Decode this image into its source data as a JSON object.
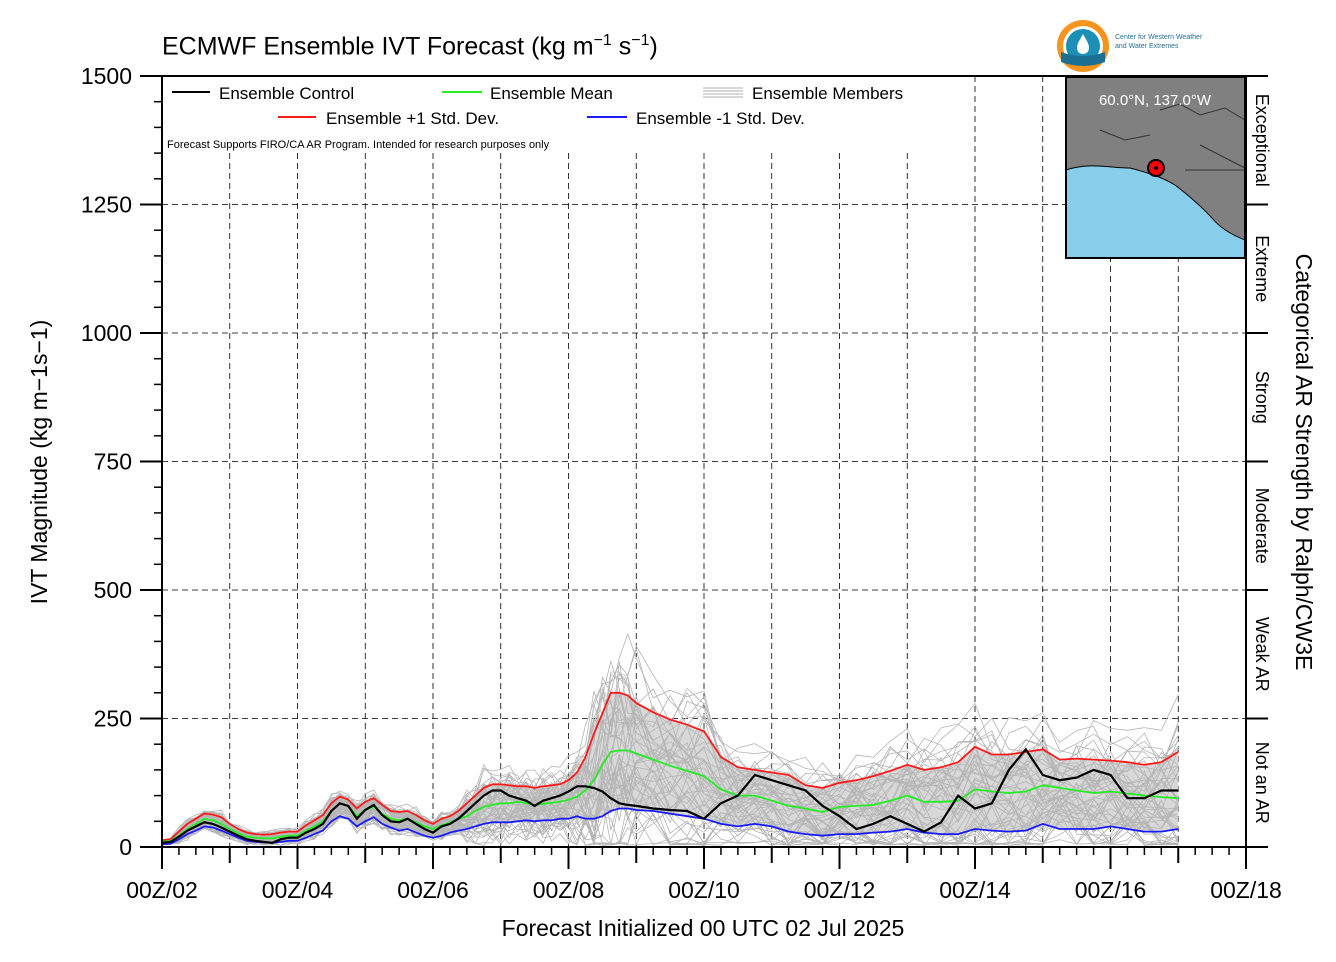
{
  "title": {
    "main": "ECMWF Ensemble IVT Forecast (kg m",
    "sup1": "−1",
    "mid": " s",
    "sup2": "−1",
    "end": ")"
  },
  "logo": {
    "line1": "Center for Western Weather",
    "line2": "and Water Extremes"
  },
  "chart_data": {
    "type": "line",
    "title": "ECMWF Ensemble IVT Forecast (kg m−1 s−1)",
    "xlabel": "Forecast Initialized 00 UTC 02 Jul 2025",
    "ylabel": "IVT Magnitude (kg m−1s−1)",
    "right_label": "Categorical AR Strength by Ralph/CW3E",
    "note": "Forecast Supports FIRO/CA AR Program. Intended for research purposes only",
    "inset_label": "60.0°N, 137.0°W",
    "ylim": [
      0,
      1500
    ],
    "xlim_days": [
      2,
      18
    ],
    "y_ticks": [
      0,
      250,
      500,
      750,
      1000,
      1250,
      1500
    ],
    "x_ticks": [
      "00Z/02",
      "00Z/04",
      "00Z/06",
      "00Z/08",
      "00Z/10",
      "00Z/12",
      "00Z/14",
      "00Z/16",
      "00Z/18"
    ],
    "grid": true,
    "legend_position": "top-left",
    "categories_right": [
      {
        "label": "Not an AR",
        "from": 0,
        "to": 250
      },
      {
        "label": "Weak AR",
        "from": 250,
        "to": 500
      },
      {
        "label": "Moderate",
        "from": 500,
        "to": 750
      },
      {
        "label": "Strong",
        "from": 750,
        "to": 1000
      },
      {
        "label": "Extreme",
        "from": 1000,
        "to": 1250
      },
      {
        "label": "Exceptional",
        "from": 1250,
        "to": 1500
      }
    ],
    "x_days": [
      2,
      2.125,
      2.25,
      2.375,
      2.5,
      2.625,
      2.75,
      2.875,
      3,
      3.125,
      3.25,
      3.375,
      3.5,
      3.625,
      3.75,
      3.875,
      4,
      4.125,
      4.25,
      4.375,
      4.5,
      4.625,
      4.75,
      4.875,
      5,
      5.125,
      5.25,
      5.375,
      5.5,
      5.625,
      5.75,
      5.875,
      6,
      6.125,
      6.25,
      6.375,
      6.5,
      6.625,
      6.75,
      6.875,
      7,
      7.125,
      7.25,
      7.375,
      7.5,
      7.625,
      7.75,
      7.875,
      8,
      8.125,
      8.25,
      8.375,
      8.5,
      8.625,
      8.75,
      8.875,
      9,
      9.25,
      9.5,
      9.75,
      10,
      10.25,
      10.5,
      10.75,
      11,
      11.25,
      11.5,
      11.75,
      12,
      12.25,
      12.5,
      12.75,
      13,
      13.25,
      13.5,
      13.75,
      14,
      14.25,
      14.5,
      14.75,
      15,
      15.25,
      15.5,
      15.75,
      16,
      16.25,
      16.5,
      16.75,
      17
    ],
    "series": [
      {
        "name": "Ensemble Control",
        "color": "#000000",
        "values": [
          8,
          10,
          20,
          32,
          40,
          48,
          45,
          38,
          30,
          22,
          15,
          12,
          10,
          8,
          15,
          18,
          18,
          28,
          35,
          45,
          70,
          85,
          80,
          55,
          72,
          82,
          62,
          50,
          48,
          55,
          45,
          35,
          28,
          40,
          45,
          55,
          70,
          85,
          100,
          110,
          110,
          100,
          95,
          90,
          80,
          90,
          95,
          100,
          108,
          118,
          118,
          115,
          108,
          95,
          85,
          82,
          80,
          75,
          72,
          70,
          55,
          85,
          100,
          140,
          130,
          120,
          110,
          80,
          60,
          35,
          45,
          60,
          45,
          30,
          48,
          100,
          75,
          85,
          150,
          190,
          140,
          130,
          135,
          150,
          140,
          95,
          95,
          110,
          110
        ]
      },
      {
        "name": "Ensemble Mean",
        "color": "#22ee22",
        "values": [
          10,
          12,
          22,
          35,
          45,
          55,
          52,
          45,
          35,
          27,
          20,
          18,
          17,
          17,
          20,
          22,
          22,
          32,
          40,
          50,
          70,
          85,
          80,
          60,
          72,
          78,
          65,
          55,
          52,
          55,
          48,
          40,
          35,
          42,
          48,
          55,
          60,
          70,
          78,
          82,
          85,
          85,
          88,
          85,
          82,
          84,
          86,
          88,
          92,
          98,
          110,
          130,
          160,
          185,
          188,
          188,
          182,
          170,
          158,
          148,
          138,
          112,
          100,
          100,
          90,
          80,
          75,
          68,
          78,
          80,
          82,
          90,
          100,
          88,
          88,
          90,
          112,
          108,
          105,
          108,
          120,
          115,
          110,
          105,
          108,
          104,
          100,
          97,
          95
        ]
      },
      {
        "name": "Ensemble +1 Std. Dev.",
        "color": "#ff1a1a",
        "values": [
          13,
          15,
          30,
          45,
          55,
          65,
          63,
          58,
          45,
          35,
          28,
          25,
          24,
          25,
          28,
          30,
          30,
          42,
          52,
          62,
          85,
          98,
          92,
          75,
          88,
          95,
          82,
          70,
          68,
          70,
          62,
          52,
          45,
          55,
          60,
          70,
          85,
          100,
          115,
          122,
          122,
          120,
          118,
          118,
          115,
          118,
          120,
          122,
          130,
          145,
          175,
          220,
          260,
          300,
          300,
          295,
          280,
          262,
          248,
          238,
          225,
          175,
          155,
          150,
          145,
          140,
          120,
          115,
          125,
          130,
          138,
          148,
          160,
          150,
          155,
          165,
          195,
          180,
          180,
          185,
          190,
          170,
          172,
          170,
          168,
          165,
          160,
          165,
          185
        ]
      },
      {
        "name": "Ensemble -1 Std. Dev.",
        "color": "#1a1aff",
        "values": [
          5,
          6,
          15,
          25,
          32,
          40,
          38,
          32,
          25,
          18,
          12,
          10,
          9,
          8,
          10,
          12,
          12,
          18,
          25,
          32,
          50,
          60,
          55,
          40,
          50,
          58,
          45,
          38,
          32,
          35,
          28,
          22,
          18,
          22,
          28,
          32,
          35,
          40,
          45,
          48,
          48,
          48,
          50,
          52,
          50,
          52,
          52,
          55,
          55,
          60,
          55,
          55,
          60,
          70,
          75,
          75,
          72,
          70,
          65,
          60,
          55,
          45,
          40,
          45,
          40,
          30,
          25,
          22,
          25,
          25,
          28,
          30,
          35,
          28,
          25,
          25,
          35,
          32,
          30,
          32,
          45,
          35,
          35,
          35,
          40,
          35,
          30,
          30,
          35
        ]
      }
    ]
  }
}
